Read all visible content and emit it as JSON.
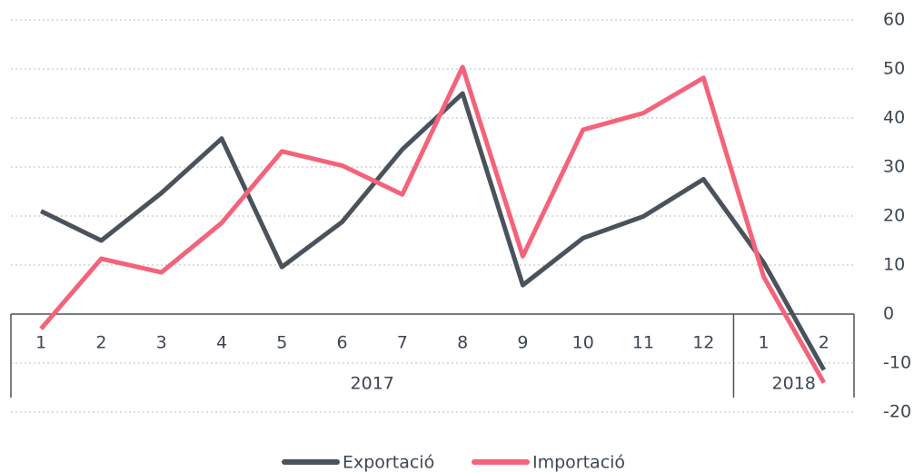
{
  "chart_data": {
    "type": "line",
    "categories": [
      "1",
      "2",
      "3",
      "4",
      "5",
      "6",
      "7",
      "8",
      "9",
      "10",
      "11",
      "12",
      "1",
      "2"
    ],
    "category_groups": [
      {
        "label": "2017",
        "span": 12
      },
      {
        "label": "2018",
        "span": 2
      }
    ],
    "series": [
      {
        "name": "Exportació",
        "color": "#4a525c",
        "values": [
          21,
          15,
          24.7,
          35.8,
          9.6,
          18.8,
          33.6,
          45,
          5.9,
          15.5,
          19.9,
          27.5,
          10.5,
          -11.4
        ]
      },
      {
        "name": "Importació",
        "color": "#f4637a",
        "values": [
          -3,
          11.3,
          8.5,
          18.6,
          33.2,
          30.3,
          24.4,
          50.4,
          11.8,
          37.6,
          41,
          48.2,
          7.6,
          -14
        ]
      }
    ],
    "ylim": [
      -20,
      60
    ],
    "yticks": [
      -20,
      -10,
      0,
      10,
      20,
      30,
      40,
      50,
      60
    ],
    "grid": true,
    "legend": "bottom"
  }
}
